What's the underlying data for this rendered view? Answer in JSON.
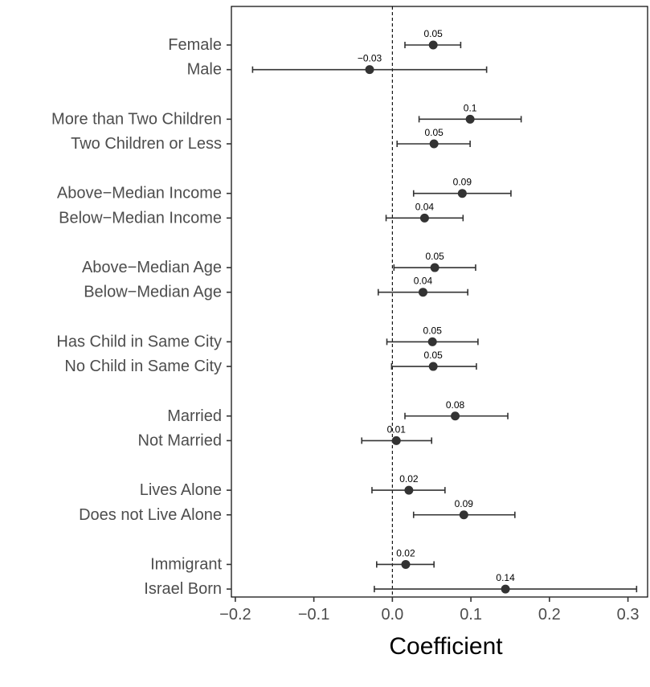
{
  "chart_data": {
    "type": "scatter",
    "subtype": "coefficient-plot",
    "xlabel": "Coefficient",
    "ylabel": "",
    "title": "",
    "xlim": [
      -0.205,
      0.325
    ],
    "xticks": [
      -0.2,
      -0.1,
      0.0,
      0.1,
      0.2,
      0.3
    ],
    "xtick_labels": [
      "−0.2",
      "−0.1",
      "0.0",
      "0.1",
      "0.2",
      "0.3"
    ],
    "reference_line_x": 0,
    "grid": false,
    "categories": [
      "Female",
      "Male",
      "More than Two Children",
      "Two Children or Less",
      "Above−Median Income",
      "Below−Median Income",
      "Above−Median Age",
      "Below−Median Age",
      "Has Child in Same City",
      "No Child in Same City",
      "Married",
      "Not Married",
      "Lives Alone",
      "Does not Live Alone",
      "Immigrant",
      "Israel Born"
    ],
    "estimates": [
      0.052,
      -0.029,
      0.099,
      0.053,
      0.089,
      0.041,
      0.054,
      0.039,
      0.051,
      0.052,
      0.08,
      0.005,
      0.021,
      0.091,
      0.017,
      0.144
    ],
    "ci_lower": [
      0.016,
      -0.178,
      0.034,
      0.006,
      0.027,
      -0.008,
      0.002,
      -0.018,
      -0.007,
      -0.001,
      0.016,
      -0.039,
      -0.026,
      0.027,
      -0.02,
      -0.023
    ],
    "ci_upper": [
      0.087,
      0.12,
      0.164,
      0.099,
      0.151,
      0.09,
      0.106,
      0.096,
      0.109,
      0.107,
      0.147,
      0.05,
      0.067,
      0.156,
      0.053,
      0.311
    ],
    "value_labels": [
      "0.05",
      "−0.03",
      "0.1",
      "0.05",
      "0.09",
      "0.04",
      "0.05",
      "0.04",
      "0.05",
      "0.05",
      "0.08",
      "0.01",
      "0.02",
      "0.09",
      "0.02",
      "0.14"
    ],
    "colors": {
      "point": "#333333",
      "line": "#000000",
      "axis": "#333333",
      "label": "#4d4d4d"
    }
  }
}
